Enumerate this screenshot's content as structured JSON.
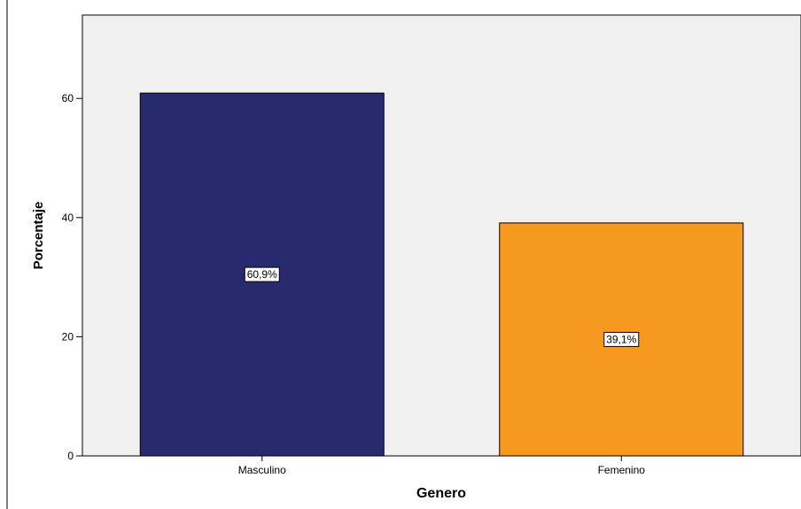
{
  "chart_data": {
    "type": "bar",
    "categories": [
      "Masculino",
      "Femenino"
    ],
    "values": [
      60.9,
      39.1
    ],
    "data_labels": [
      "60,9%",
      "39,1%"
    ],
    "colors": [
      "#272A6E",
      "#F7991F"
    ],
    "xlabel": "Genero",
    "ylabel": "Porcentaje",
    "ylim": [
      0,
      74
    ],
    "yticks": [
      0,
      20,
      40,
      60
    ],
    "grid": false,
    "plot_background": "#F0F0F0"
  }
}
